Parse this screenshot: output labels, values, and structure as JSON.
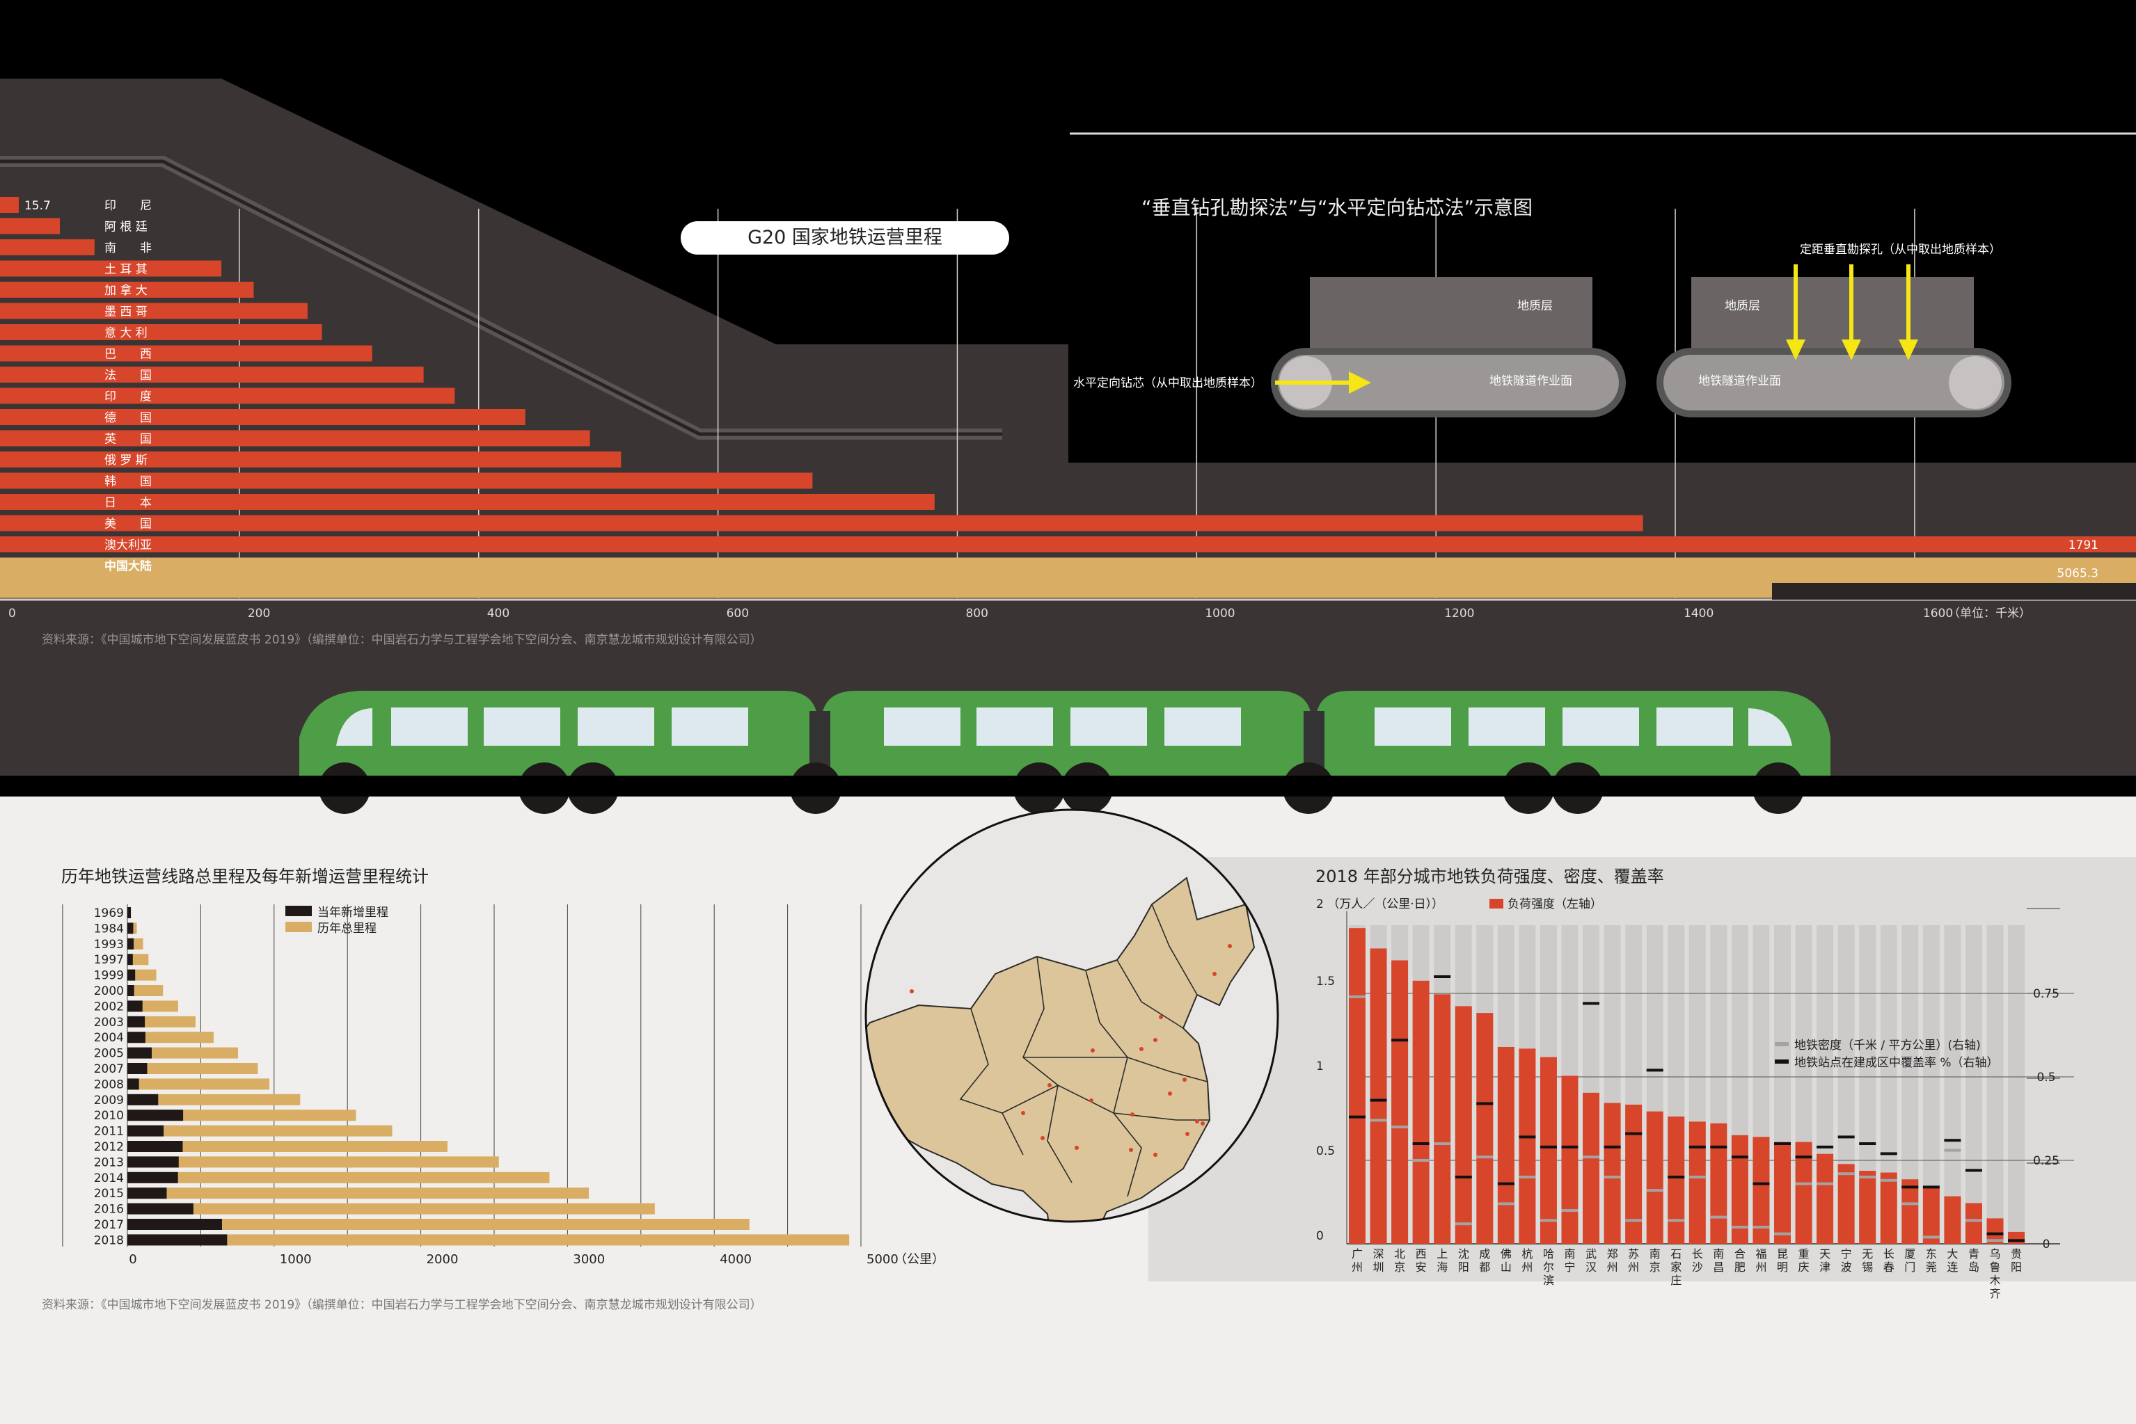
{
  "g20": {
    "title": "G20 国家地铁运营里程",
    "unit": "（单位：千米）",
    "source": "资料来源：《中国城市地下空间发展蓝皮书 2019》（编撰单位：中国岩石力学与工程学会地下空间分会、南京慧龙城市规划设计有限公司）"
  },
  "schematic": {
    "title": "“垂直钻孔勘探法”与“水平定向钻芯法”示意图",
    "geo_layer_left": "地质层",
    "geo_layer_right": "地质层",
    "tunnel_face_left": "地铁隧道作业面",
    "tunnel_face_right": "地铁隧道作业面",
    "horizontal_label": "水平定向钻芯（从中取出地质样本）",
    "vertical_label": "定距垂直勘探孔（从中取出地质样本）",
    "arrow_color": "#f5e614"
  },
  "annual": {
    "title": "历年地铁运营线路总里程及每年新增运营里程统计",
    "unit": "（公里）",
    "source": "资料来源：《中国城市地下空间发展蓝皮书 2019》（编撰单位：中国岩石力学与工程学会地下空间分会、南京慧龙城市规划设计有限公司）"
  },
  "load": {
    "title": "2018 年部分城市地铁负荷强度、密度、覆盖率",
    "left_unit": "（万人／（公里·日））",
    "legend_load": "负荷强度（左轴）",
    "legend_density": "地铁密度（千米 / 平方公里）(右轴)",
    "legend_coverage": "地铁站点在建成区中覆盖率 %（右轴）"
  },
  "colors": {
    "red": "#d7452b",
    "gold": "#d9ad63",
    "dark": "#3a3534",
    "black": "#000000",
    "train_green": "#4d9e47",
    "map_beige": "#dcc59a"
  },
  "chart_data": [
    {
      "type": "bar",
      "orientation": "horizontal",
      "title": "G20 国家地铁运营里程",
      "categories": [
        "印　　尼",
        "阿 根 廷",
        "南　　非",
        "土 耳 其",
        "加 拿 大",
        "墨 西 哥",
        "意 大 利",
        "巴　　西",
        "法　　国",
        "印　　度",
        "德　　国",
        "英　　国",
        "俄 罗 斯",
        "韩　　国",
        "日　　本",
        "美　　国",
        "澳大利亚",
        "中国大陆"
      ],
      "values": [
        15.7,
        50,
        79,
        185,
        212,
        257,
        269,
        311,
        354,
        380,
        439,
        493,
        519,
        679,
        781,
        1373,
        1791,
        5065.3
      ],
      "value_labels": [
        "15.7",
        "",
        "",
        "",
        "",
        "",
        "",
        "",
        "",
        "",
        "",
        "",
        "",
        "",
        "",
        "",
        "1791",
        "5065.3"
      ],
      "xticks": [
        0,
        200,
        400,
        600,
        800,
        1000,
        1200,
        1400,
        1600
      ],
      "xlim": [
        0,
        1785
      ]
    },
    {
      "type": "bar",
      "orientation": "horizontal",
      "title": "历年地铁运营线路总里程及每年新增运营里程统计",
      "categories": [
        "1969",
        "1984",
        "1993",
        "1997",
        "1999",
        "2000",
        "2002",
        "2003",
        "2004",
        "2005",
        "2007",
        "2008",
        "2009",
        "2010",
        "2011",
        "2012",
        "2013",
        "2014",
        "2015",
        "2016",
        "2017",
        "2018"
      ],
      "series": [
        {
          "name": "当年新增里程",
          "values": [
            24,
            40,
            43,
            37,
            53,
            46,
            103,
            119,
            123,
            166,
            135,
            79,
            210,
            380,
            247,
            377,
            350,
            345,
            268,
            450,
            645,
            680
          ]
        },
        {
          "name": "历年总里程",
          "values": [
            24,
            64,
            107,
            144,
            197,
            243,
            346,
            465,
            588,
            754,
            889,
            968,
            1178,
            1558,
            1805,
            2182,
            2532,
            2877,
            3145,
            3595,
            4240,
            4920
          ]
        }
      ],
      "xticks": [
        0,
        1000,
        2000,
        3000,
        4000,
        5000
      ],
      "xlim": [
        0,
        5000
      ]
    },
    {
      "type": "bar",
      "title": "2018 年部分城市地铁负荷强度、密度、覆盖率",
      "categories": [
        "广州",
        "深圳",
        "北京",
        "西安",
        "上海",
        "沈阳",
        "成都",
        "佛山",
        "杭州",
        "哈尔滨",
        "南宁",
        "武汉",
        "郑州",
        "苏州",
        "南京",
        "石家庄",
        "长沙",
        "南昌",
        "合肥",
        "福州",
        "昆明",
        "重庆",
        "天津",
        "宁波",
        "无锡",
        "长春",
        "厦门",
        "东莞",
        "大连",
        "青岛",
        "乌鲁木齐",
        "贵阳"
      ],
      "series": [
        {
          "name": "负荷强度（左轴）",
          "axis": "left",
          "values": [
            1.86,
            1.74,
            1.67,
            1.55,
            1.47,
            1.4,
            1.36,
            1.16,
            1.15,
            1.1,
            0.99,
            0.89,
            0.83,
            0.82,
            0.78,
            0.75,
            0.72,
            0.71,
            0.64,
            0.63,
            0.6,
            0.6,
            0.53,
            0.47,
            0.43,
            0.42,
            0.38,
            0.33,
            0.28,
            0.24,
            0.15,
            0.07
          ]
        },
        {
          "name": "地铁密度（千米 / 平方公里）(右轴)",
          "axis": "right",
          "values": [
            0.74,
            0.37,
            0.35,
            0.25,
            0.3,
            0.06,
            0.26,
            0.12,
            0.2,
            0.07,
            0.1,
            0.26,
            0.2,
            0.07,
            0.16,
            0.07,
            0.2,
            0.08,
            0.05,
            0.05,
            0.03,
            0.18,
            0.18,
            0.21,
            0.2,
            0.19,
            0.12,
            0.02,
            0.28,
            0.07,
            0.01,
            0.01
          ]
        },
        {
          "name": "地铁站点在建成区中覆盖率 %（右轴）",
          "axis": "right",
          "values": [
            0.38,
            0.43,
            0.61,
            0.3,
            0.8,
            0.2,
            0.42,
            0.18,
            0.32,
            0.29,
            0.29,
            0.72,
            0.29,
            0.33,
            0.52,
            0.2,
            0.29,
            0.29,
            0.26,
            0.18,
            0.3,
            0.26,
            0.29,
            0.32,
            0.3,
            0.27,
            0.17,
            0.17,
            0.31,
            0.22,
            0.03,
            0.01
          ]
        }
      ],
      "left_yticks": [
        "0",
        "0.5",
        "1",
        "1.5",
        "2"
      ],
      "right_yticks": [
        "0",
        "0.25",
        "0.5",
        "0.75"
      ],
      "ylim_left": [
        0,
        2
      ],
      "ylim_right": [
        0,
        1
      ]
    }
  ]
}
